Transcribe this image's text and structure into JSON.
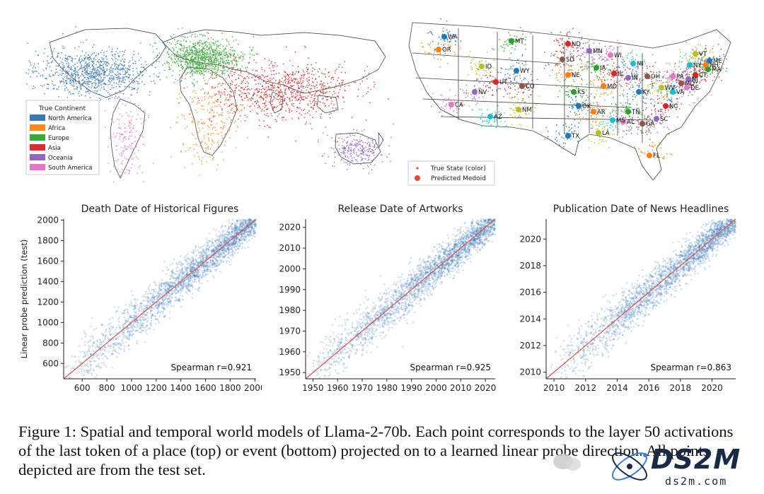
{
  "world_map": {
    "legend_title": "True Continent",
    "legend_items": [
      {
        "label": "North America",
        "color": "#3a78b5"
      },
      {
        "label": "Africa",
        "color": "#f08a24"
      },
      {
        "label": "Europe",
        "color": "#3aa73a"
      },
      {
        "label": "Asia",
        "color": "#d03030"
      },
      {
        "label": "Oceania",
        "color": "#9467bd"
      },
      {
        "label": "South America",
        "color": "#e377c2"
      }
    ]
  },
  "us_map": {
    "legend_items": [
      {
        "label": "True State (color)"
      },
      {
        "label": "Predicted Medoid"
      }
    ],
    "state_labels": [
      "WA",
      "OR",
      "MT",
      "ND",
      "MN",
      "SD",
      "WI",
      "MI",
      "ID",
      "WY",
      "NE",
      "IA",
      "IL",
      "IN",
      "OH",
      "PA",
      "NY",
      "VT",
      "ME",
      "NH",
      "MA",
      "CT",
      "NJ",
      "MD",
      "DE",
      "VA",
      "WV",
      "KY",
      "MO",
      "KS",
      "UT",
      "NV",
      "CO",
      "CA",
      "AZ",
      "NM",
      "OK",
      "AR",
      "TN",
      "NC",
      "SC",
      "GA",
      "AL",
      "MS",
      "LA",
      "TX",
      "FL"
    ]
  },
  "chart_data": [
    {
      "type": "scatter",
      "title": "Death Date of Historical Figures",
      "ylabel": "Linear probe prediction (test)",
      "xlabel": "",
      "xlim": [
        450,
        2010
      ],
      "ylim": [
        450,
        2010
      ],
      "xticks": [
        "600",
        "800",
        "1000",
        "1200",
        "1400",
        "1600",
        "1800",
        "2000"
      ],
      "yticks": [
        "600",
        "800",
        "1000",
        "1200",
        "1400",
        "1600",
        "1800",
        "2000"
      ],
      "annotation": "Spearman r=0.921",
      "spearman_r": 0.921,
      "points_color": "#3a78b5",
      "fit_line": {
        "x": [
          450,
          2010
        ],
        "y": [
          450,
          2010
        ],
        "color": "#d9534f"
      }
    },
    {
      "type": "scatter",
      "title": "Release Date of Artworks",
      "ylabel": "",
      "xlabel": "",
      "xlim": [
        1947,
        2024
      ],
      "ylim": [
        1947,
        2024
      ],
      "xticks": [
        "1950",
        "1960",
        "1970",
        "1980",
        "1990",
        "2000",
        "2010",
        "2020"
      ],
      "yticks": [
        "1950",
        "1960",
        "1970",
        "1980",
        "1990",
        "2000",
        "2010",
        "2020"
      ],
      "annotation": "Spearman r=0.925",
      "spearman_r": 0.925,
      "points_color": "#3a78b5",
      "fit_line": {
        "x": [
          1947,
          2024
        ],
        "y": [
          1947,
          2024
        ],
        "color": "#d9534f"
      }
    },
    {
      "type": "scatter",
      "title": "Publication Date of News Headlines",
      "ylabel": "",
      "xlabel": "",
      "xlim": [
        2009.5,
        2021.5
      ],
      "ylim": [
        2009.5,
        2021.5
      ],
      "xticks": [
        "2010",
        "2012",
        "2014",
        "2016",
        "2018",
        "2020"
      ],
      "yticks": [
        "2010",
        "2012",
        "2014",
        "2016",
        "2018",
        "2020"
      ],
      "annotation": "Spearman r=0.863",
      "spearman_r": 0.863,
      "points_color": "#3a78b5",
      "fit_line": {
        "x": [
          2009.5,
          2021.5
        ],
        "y": [
          2009.5,
          2021.5
        ],
        "color": "#d9534f"
      }
    }
  ],
  "caption": {
    "text": "Figure 1: Spatial and temporal world models of Llama-2-70b. Each point corresponds to the layer 50 activations of the last token of a place (top) or event (bottom) projected on to a learned linear probe direction. All points depicted are from the test set."
  },
  "watermark": {
    "logo_text": "DS2M",
    "url_text": "ds2m.com"
  }
}
